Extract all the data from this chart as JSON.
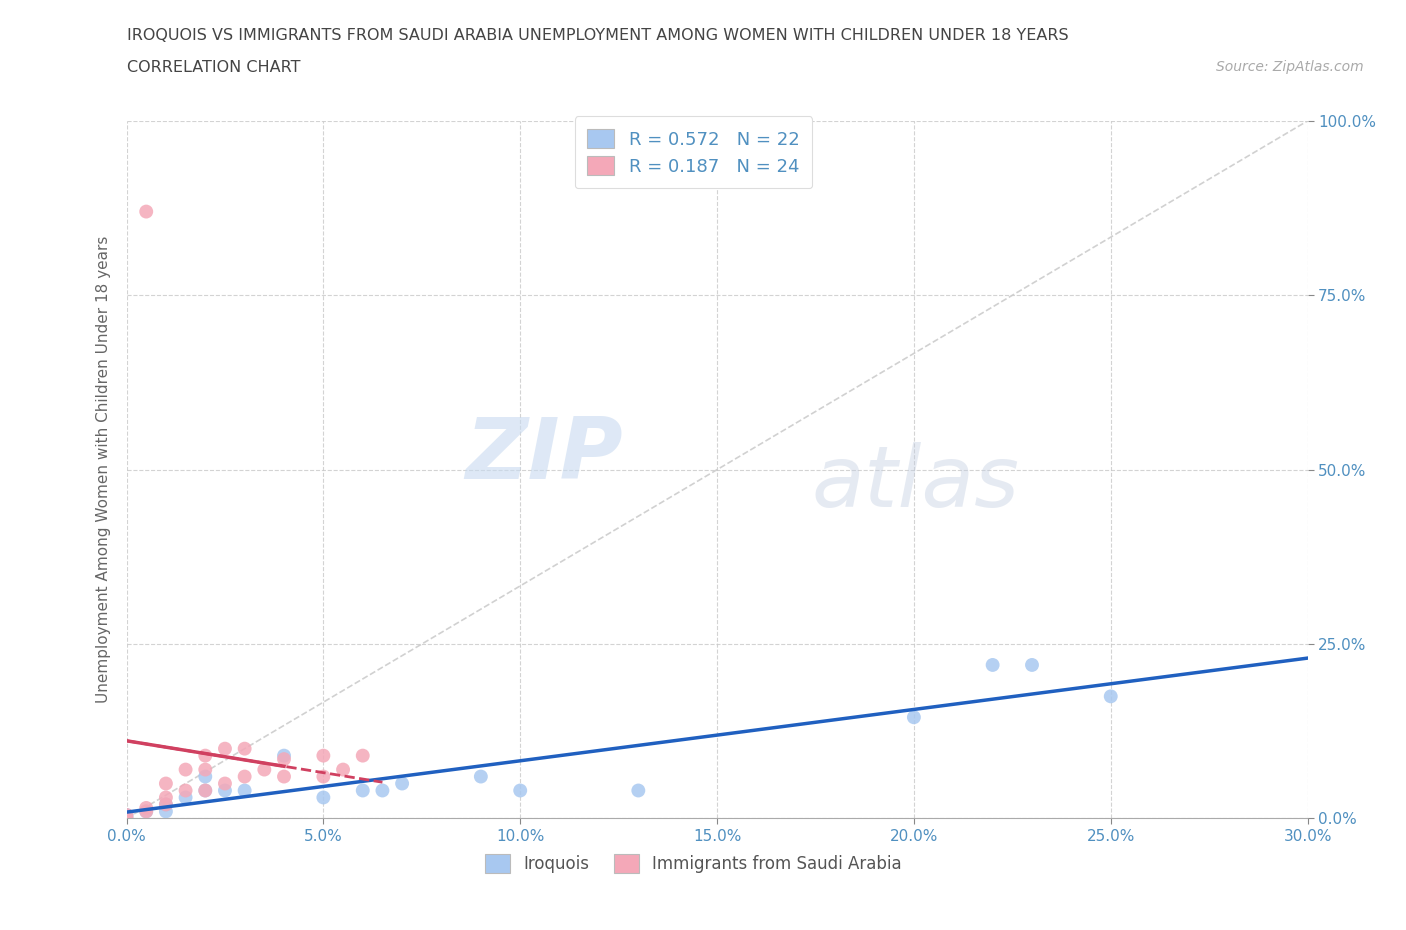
{
  "title_line1": "IROQUOIS VS IMMIGRANTS FROM SAUDI ARABIA UNEMPLOYMENT AMONG WOMEN WITH CHILDREN UNDER 18 YEARS",
  "title_line2": "CORRELATION CHART",
  "source_text": "Source: ZipAtlas.com",
  "ylabel": "Unemployment Among Women with Children Under 18 years",
  "xlim": [
    0.0,
    0.3
  ],
  "ylim": [
    0.0,
    1.0
  ],
  "xtick_labels": [
    "0.0%",
    "5.0%",
    "10.0%",
    "15.0%",
    "20.0%",
    "25.0%",
    "30.0%"
  ],
  "xtick_vals": [
    0.0,
    0.05,
    0.1,
    0.15,
    0.2,
    0.25,
    0.3
  ],
  "ytick_labels": [
    "0.0%",
    "25.0%",
    "50.0%",
    "75.0%",
    "100.0%"
  ],
  "ytick_vals": [
    0.0,
    0.25,
    0.5,
    0.75,
    1.0
  ],
  "iroquois_color": "#a8c8f0",
  "saudi_color": "#f4a8b8",
  "iroquois_line_color": "#2060c0",
  "saudi_line_color": "#d04060",
  "diagonal_color": "#cccccc",
  "r_iroquois": 0.572,
  "n_iroquois": 22,
  "r_saudi": 0.187,
  "n_saudi": 24,
  "watermark_zip": "ZIP",
  "watermark_atlas": "atlas",
  "iroquois_x": [
    0.0,
    0.0,
    0.005,
    0.01,
    0.01,
    0.015,
    0.02,
    0.02,
    0.025,
    0.03,
    0.04,
    0.05,
    0.06,
    0.065,
    0.07,
    0.09,
    0.1,
    0.13,
    0.2,
    0.22,
    0.23,
    0.25
  ],
  "iroquois_y": [
    0.0,
    0.005,
    0.01,
    0.01,
    0.02,
    0.03,
    0.04,
    0.06,
    0.04,
    0.04,
    0.09,
    0.03,
    0.04,
    0.04,
    0.05,
    0.06,
    0.04,
    0.04,
    0.145,
    0.22,
    0.22,
    0.175
  ],
  "saudi_x": [
    0.0,
    0.0,
    0.005,
    0.005,
    0.01,
    0.01,
    0.01,
    0.015,
    0.015,
    0.02,
    0.02,
    0.02,
    0.025,
    0.025,
    0.03,
    0.03,
    0.035,
    0.04,
    0.04,
    0.05,
    0.05,
    0.055,
    0.06,
    0.005
  ],
  "saudi_y": [
    0.0,
    0.005,
    0.01,
    0.015,
    0.02,
    0.03,
    0.05,
    0.04,
    0.07,
    0.04,
    0.07,
    0.09,
    0.05,
    0.1,
    0.06,
    0.1,
    0.07,
    0.06,
    0.085,
    0.06,
    0.09,
    0.07,
    0.09,
    0.87
  ],
  "background_color": "#ffffff",
  "grid_color": "#c8c8c8",
  "title_color": "#444444",
  "axis_label_color": "#666666",
  "tick_label_color": "#5090c0"
}
